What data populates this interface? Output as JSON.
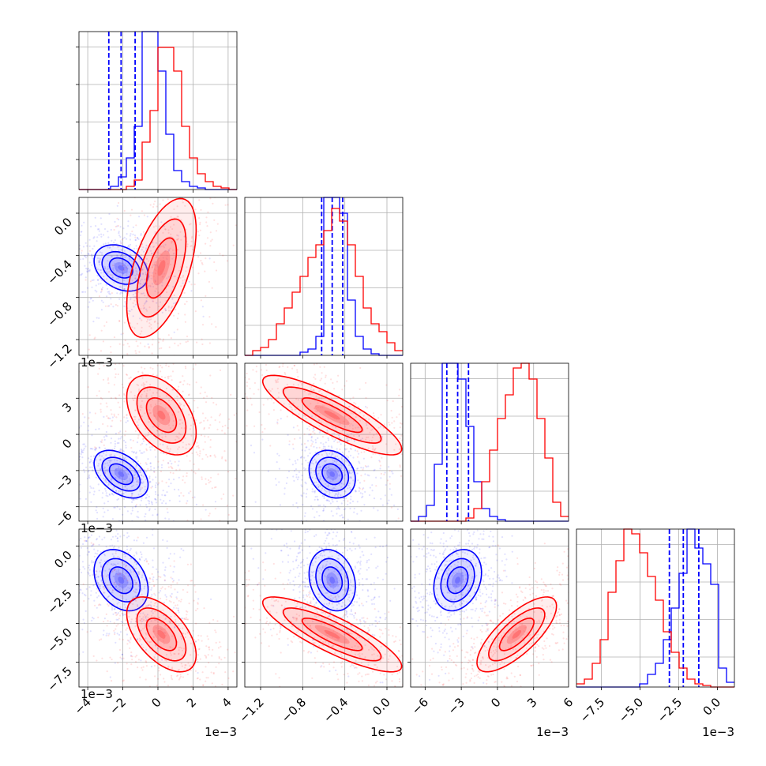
{
  "chart_data": {
    "type": "corner",
    "title": "",
    "n_params": 4,
    "series": [
      {
        "color": "#0000ff",
        "centers": [
          -0.0021,
          -0.00052,
          -0.0033,
          -0.0022
        ],
        "sigmas": [
          0.0007,
          0.0001,
          0.0009,
          0.0009
        ],
        "quantile_lines": [
          [
            -0.0028,
            -0.0021,
            -0.0013
          ],
          [
            -0.00062,
            -0.00052,
            -0.00042
          ],
          [
            -0.0042,
            -0.0033,
            -0.0024
          ],
          [
            -0.0031,
            -0.0022,
            -0.0012
          ]
        ]
      },
      {
        "color": "#ff0000",
        "centers": [
          0.0002,
          -0.00052,
          0.0016,
          -0.0057
        ],
        "sigmas": [
          0.0009,
          0.0003,
          0.0015,
          0.0011
        ],
        "quantile_lines": null
      }
    ],
    "diag_hist": {
      "n_bins": 20,
      "blue": [
        [
          0,
          0,
          0,
          0,
          2,
          8,
          20,
          40,
          100,
          100,
          75,
          35,
          12,
          5,
          2,
          1,
          0,
          0,
          0,
          0
        ],
        [
          0,
          0,
          0,
          0,
          0,
          0,
          0,
          2,
          4,
          12,
          100,
          100,
          90,
          35,
          12,
          4,
          1,
          0,
          0,
          0
        ],
        [
          0,
          3,
          10,
          36,
          100,
          100,
          90,
          60,
          25,
          8,
          3,
          1,
          0,
          0,
          0,
          0,
          0,
          0,
          0,
          0
        ],
        [
          0,
          0,
          0,
          0,
          0,
          0,
          0,
          0,
          2,
          8,
          15,
          30,
          50,
          72,
          100,
          88,
          78,
          65,
          12,
          3
        ]
      ],
      "red": [
        [
          0,
          0,
          0,
          0,
          0,
          0,
          2,
          6,
          30,
          50,
          90,
          90,
          75,
          40,
          20,
          10,
          5,
          2,
          1,
          0
        ],
        [
          0,
          3,
          5,
          10,
          20,
          30,
          40,
          50,
          62,
          70,
          79,
          93,
          85,
          70,
          50,
          30,
          20,
          15,
          8,
          3
        ],
        [
          0,
          0,
          0,
          0,
          0,
          0,
          0,
          2,
          8,
          25,
          45,
          65,
          80,
          97,
          100,
          90,
          65,
          40,
          12,
          3
        ],
        [
          2,
          5,
          15,
          30,
          60,
          80,
          100,
          97,
          85,
          70,
          55,
          35,
          22,
          12,
          5,
          2,
          1,
          0,
          0,
          0
        ]
      ]
    },
    "pairs": [
      {
        "i": 1,
        "j": 0,
        "blue_rho": -0.3,
        "red_rho": 0.55
      },
      {
        "i": 2,
        "j": 0,
        "blue_rho": -0.45,
        "red_rho": -0.45
      },
      {
        "i": 2,
        "j": 1,
        "blue_rho": -0.2,
        "red_rho": -0.85
      },
      {
        "i": 3,
        "j": 0,
        "blue_rho": -0.3,
        "red_rho": -0.55
      },
      {
        "i": 3,
        "j": 1,
        "blue_rho": -0.2,
        "red_rho": -0.85
      },
      {
        "i": 3,
        "j": 2,
        "blue_rho": 0.25,
        "red_rho": 0.75
      }
    ],
    "axes": [
      {
        "range": [
          -0.0045,
          0.0045
        ],
        "ticks": [
          -0.004,
          -0.002,
          0,
          0.002,
          0.004
        ],
        "tick_labels": [
          "−4",
          "−2",
          "0",
          "2",
          "4"
        ],
        "offset_text": "1e−3"
      },
      {
        "range": [
          -0.00135,
          0.00015
        ],
        "ticks": [
          -0.0012,
          -0.0008,
          -0.0004,
          0
        ],
        "tick_labels": [
          "−1.2",
          "−0.8",
          "−0.4",
          "0.0"
        ],
        "offset_text": "1e−3"
      },
      {
        "range": [
          -0.0072,
          0.0059
        ],
        "ticks": [
          -0.006,
          -0.003,
          0,
          0.003,
          0.006
        ],
        "tick_labels": [
          "−6",
          "−3",
          "0",
          "3",
          "6"
        ],
        "offset_text": "1e−3"
      },
      {
        "range": [
          -0.0091,
          0.0011
        ],
        "ticks": [
          -0.0075,
          -0.005,
          -0.0025,
          0
        ],
        "tick_labels": [
          "−7.5",
          "−5.0",
          "−2.5",
          "0.0"
        ],
        "offset_text": "1e−3"
      }
    ],
    "grid": true,
    "legend": "none"
  }
}
